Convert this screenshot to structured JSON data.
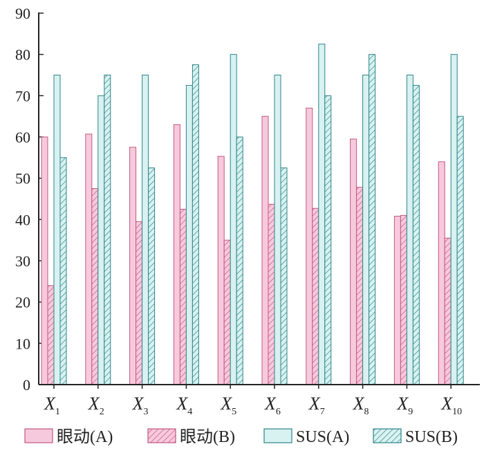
{
  "chart_data": {
    "type": "bar",
    "categories": [
      {
        "main": "X",
        "sub": "1"
      },
      {
        "main": "X",
        "sub": "2"
      },
      {
        "main": "X",
        "sub": "3"
      },
      {
        "main": "X",
        "sub": "4"
      },
      {
        "main": "X",
        "sub": "5"
      },
      {
        "main": "X",
        "sub": "6"
      },
      {
        "main": "X",
        "sub": "7"
      },
      {
        "main": "X",
        "sub": "8"
      },
      {
        "main": "X",
        "sub": "9"
      },
      {
        "main": "X",
        "sub": "10"
      }
    ],
    "series": [
      {
        "name": "眼动(A)",
        "fill": "#f7c9dc",
        "stroke": "#c0587f",
        "hatched": false,
        "values": [
          60,
          60.7,
          57.5,
          63,
          55.3,
          65,
          67,
          59.5,
          40.8,
          54
        ]
      },
      {
        "name": "眼动(B)",
        "fill": "#f7c9dc",
        "stroke": "#c0587f",
        "hatched": true,
        "values": [
          24,
          47.5,
          39.5,
          42.5,
          35,
          43.7,
          42.7,
          47.8,
          41,
          35.5
        ]
      },
      {
        "name": "SUS(A)",
        "fill": "#d8f1f1",
        "stroke": "#2d8487",
        "hatched": false,
        "values": [
          75,
          70,
          75,
          72.5,
          80,
          75,
          82.5,
          75,
          75,
          80
        ]
      },
      {
        "name": "SUS(B)",
        "fill": "#d8f1f1",
        "stroke": "#2d8487",
        "hatched": true,
        "values": [
          55,
          75,
          52.5,
          77.5,
          60,
          52.5,
          70,
          80,
          72.5,
          65
        ]
      }
    ],
    "yticks": [
      "0",
      "10",
      "20",
      "30",
      "40",
      "50",
      "60",
      "70",
      "80",
      "90"
    ],
    "ylim": [
      0,
      90
    ],
    "grid": false,
    "legend_position": "bottom"
  }
}
